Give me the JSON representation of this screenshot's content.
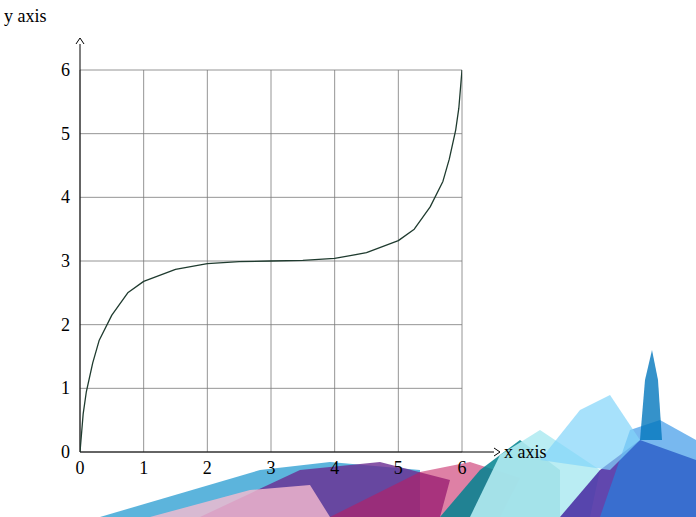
{
  "chart_data": {
    "type": "line",
    "x_label": "x axis",
    "y_label": "y axis",
    "x": [
      0,
      0.05,
      0.1,
      0.2,
      0.3,
      0.5,
      0.75,
      1,
      1.5,
      2,
      2.5,
      3,
      3.5,
      4,
      4.5,
      5,
      5.25,
      5.5,
      5.7,
      5.8,
      5.9,
      5.95,
      6
    ],
    "values": [
      0,
      0.6,
      0.95,
      1.4,
      1.75,
      2.15,
      2.5,
      2.68,
      2.87,
      2.96,
      2.99,
      3,
      3.01,
      3.04,
      3.13,
      3.32,
      3.5,
      3.85,
      4.25,
      4.6,
      5.05,
      5.4,
      6
    ],
    "color": "#1f3b2f",
    "xlim": [
      0,
      6
    ],
    "ylim": [
      0,
      6
    ],
    "xticks": [
      0,
      1,
      2,
      3,
      4,
      5,
      6
    ],
    "yticks": [
      0,
      1,
      2,
      3,
      4,
      5,
      6
    ],
    "grid": true
  }
}
